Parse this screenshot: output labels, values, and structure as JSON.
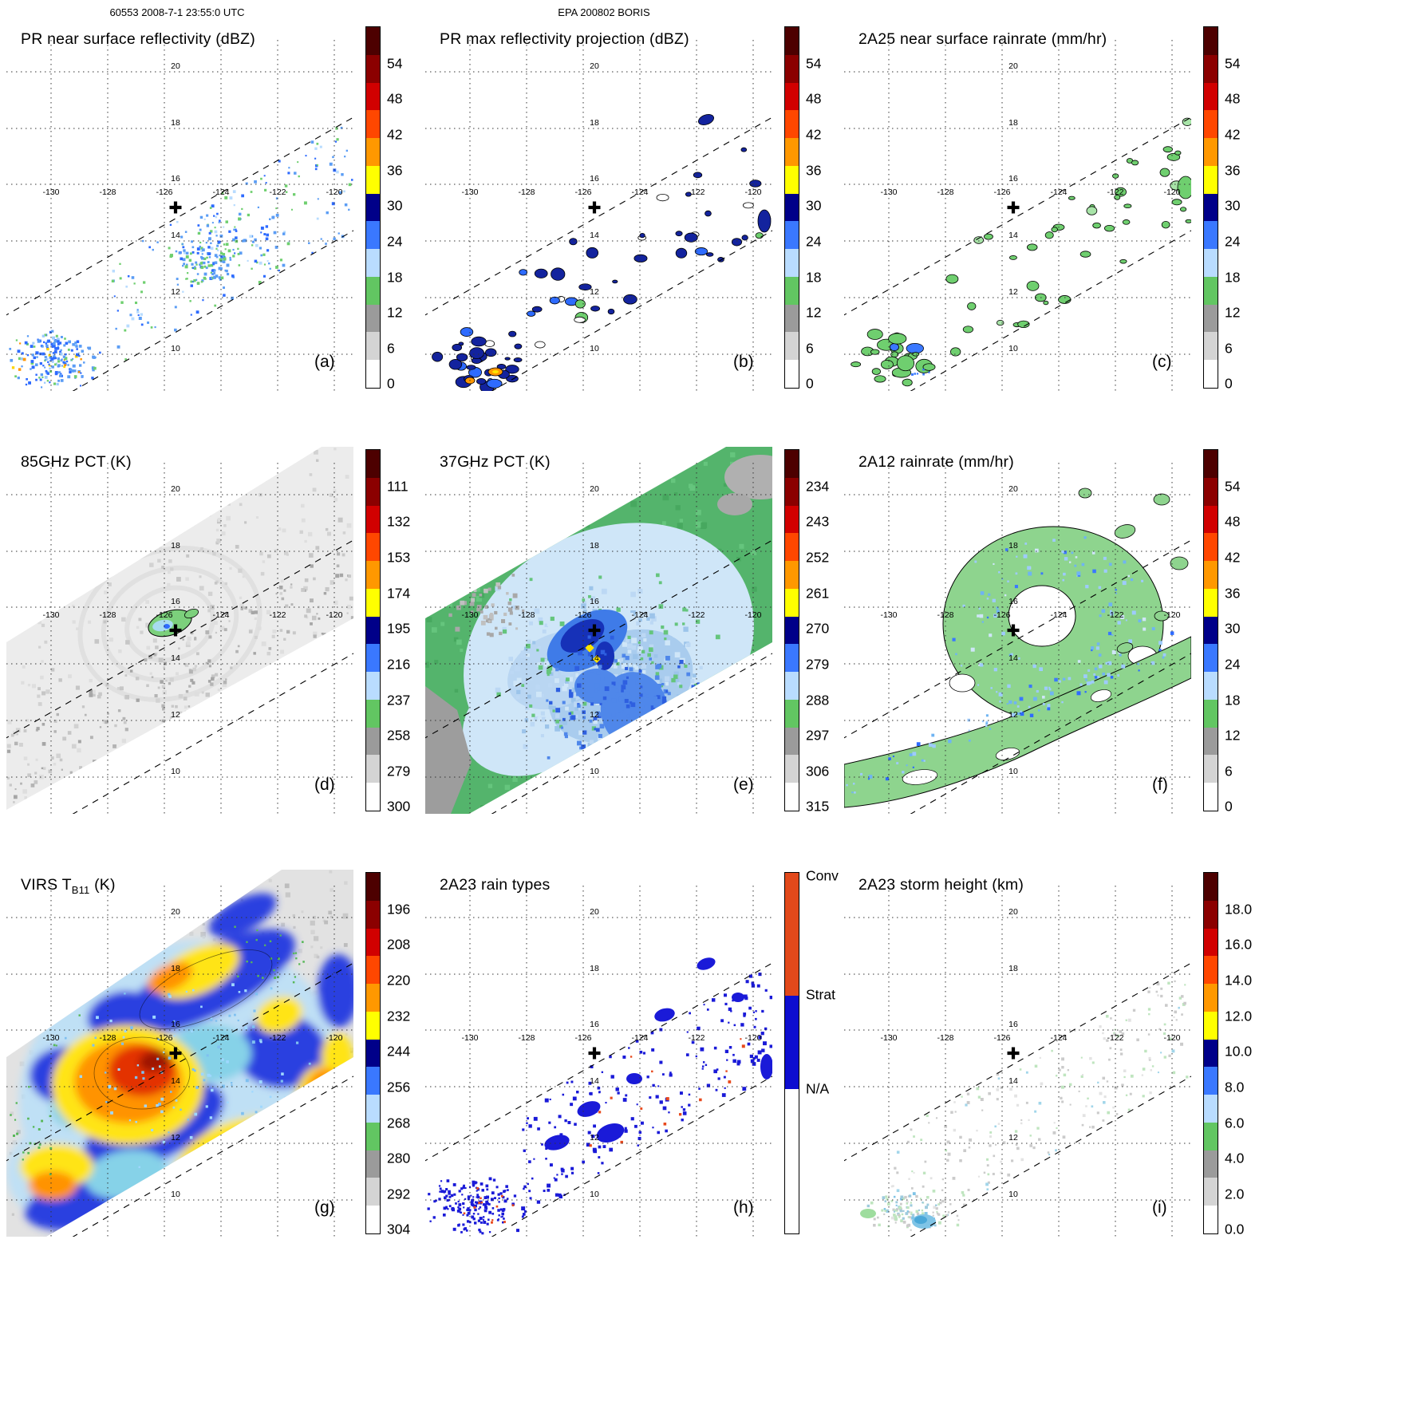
{
  "header": {
    "left": "60553 2008-7-1 23:55:0 UTC",
    "center": "EPA 200802 BORIS"
  },
  "axes": {
    "lon_labels": [
      "-130",
      "-128",
      "-126",
      "-124",
      "-122",
      "-120"
    ],
    "lat_labels": [
      "20",
      "18",
      "16",
      "14",
      "12",
      "10"
    ]
  },
  "marker": {
    "lon": -125.7,
    "lat": 15.4
  },
  "colorbar_colors": [
    "#4d0000",
    "#8b0000",
    "#d10000",
    "#ff4700",
    "#ff9800",
    "#ffff00",
    "#000089",
    "#3a78ff",
    "#b9dcff",
    "#62c662",
    "#9b9b9b",
    "#d4d4d4",
    "#ffffff"
  ],
  "raintype": {
    "segments": [
      {
        "label": "Conv",
        "color": "#e2491b",
        "frac": 0.34
      },
      {
        "label": "Strat",
        "color": "#0d0dd0",
        "frac": 0.26
      },
      {
        "label": "N/A",
        "color": "#ffffff",
        "frac": 0.4
      }
    ]
  },
  "panels": [
    {
      "key": "a",
      "letter": "(a)",
      "title": "PR near surface reflectivity (dBZ)",
      "cb": "scale",
      "cb_labels": [
        "54",
        "48",
        "42",
        "36",
        "30",
        "24",
        "18",
        "12",
        "6",
        "0"
      ]
    },
    {
      "key": "b",
      "letter": "(b)",
      "title": "PR max reflectivity projection (dBZ)",
      "cb": "scale",
      "cb_labels": [
        "54",
        "48",
        "42",
        "36",
        "30",
        "24",
        "18",
        "12",
        "6",
        "0"
      ]
    },
    {
      "key": "c",
      "letter": "(c)",
      "title": "2A25 near surface rainrate (mm/hr)",
      "cb": "scale",
      "cb_labels": [
        "54",
        "48",
        "42",
        "36",
        "30",
        "24",
        "18",
        "12",
        "6",
        "0"
      ]
    },
    {
      "key": "d",
      "letter": "(d)",
      "title": "85GHz PCT (K)",
      "cb": "scale",
      "cb_labels": [
        "111",
        "132",
        "153",
        "174",
        "195",
        "216",
        "237",
        "258",
        "279",
        "300"
      ]
    },
    {
      "key": "e",
      "letter": "(e)",
      "title": "37GHz PCT (K)",
      "cb": "scale",
      "cb_labels": [
        "234",
        "243",
        "252",
        "261",
        "270",
        "279",
        "288",
        "297",
        "306",
        "315"
      ]
    },
    {
      "key": "f",
      "letter": "(f)",
      "title": "2A12 rainrate (mm/hr)",
      "cb": "scale",
      "cb_labels": [
        "54",
        "48",
        "42",
        "36",
        "30",
        "24",
        "18",
        "12",
        "6",
        "0"
      ]
    },
    {
      "key": "g",
      "letter": "(g)",
      "title_pre": "VIRS T",
      "title_sub": "B11",
      "title_post": " (K)",
      "cb": "scale",
      "cb_labels": [
        "196",
        "208",
        "220",
        "232",
        "244",
        "256",
        "268",
        "280",
        "292",
        "304"
      ]
    },
    {
      "key": "h",
      "letter": "(h)",
      "title": "2A23 rain types",
      "cb": "raintype",
      "cb_labels": [
        "Conv",
        "Strat",
        "N/A"
      ]
    },
    {
      "key": "i",
      "letter": "(i)",
      "title": "2A23 storm height (km)",
      "cb": "scale",
      "cb_labels": [
        "18.0",
        "16.0",
        "14.0",
        "12.0",
        "10.0",
        "8.0",
        "6.0",
        "4.0",
        "2.0",
        "0.0"
      ]
    }
  ],
  "chart_data": [
    {
      "panel": "(a)",
      "type": "heatmap",
      "title": "PR near surface reflectivity (dBZ)",
      "units": "dBZ",
      "colorbar_ticks": [
        54,
        48,
        42,
        36,
        30,
        24,
        18,
        12,
        6,
        0
      ],
      "lon_ticks": [
        -130,
        -128,
        -126,
        -124,
        -122,
        -120
      ],
      "lat_ticks": [
        20,
        18,
        16,
        14,
        12,
        10
      ],
      "storm_center": {
        "lon": -125.7,
        "lat": 15.4
      },
      "notes": "scattered 18-30 dBZ echoes along narrow PR swath; denser cluster near 10N 129-131W"
    },
    {
      "panel": "(b)",
      "type": "heatmap",
      "title": "PR max reflectivity projection (dBZ)",
      "units": "dBZ",
      "colorbar_ticks": [
        54,
        48,
        42,
        36,
        30,
        24,
        18,
        12,
        6,
        0
      ],
      "lon_ticks": [
        -130,
        -128,
        -126,
        -124,
        -122,
        -120
      ],
      "lat_ticks": [
        20,
        18,
        16,
        14,
        12,
        10
      ],
      "storm_center": {
        "lon": -125.7,
        "lat": 15.4
      },
      "notes": "outlined 30-36 dBZ cells along swath; 42-48 dBZ cores near 10N 130W"
    },
    {
      "panel": "(c)",
      "type": "heatmap",
      "title": "2A25 near surface rainrate (mm/hr)",
      "units": "mm/hr",
      "colorbar_ticks": [
        54,
        48,
        42,
        36,
        30,
        24,
        18,
        12,
        6,
        0
      ],
      "lon_ticks": [
        -130,
        -128,
        -126,
        -124,
        -122,
        -120
      ],
      "lat_ticks": [
        20,
        18,
        16,
        14,
        12,
        10
      ],
      "storm_center": {
        "lon": -125.7,
        "lat": 15.4
      },
      "notes": "light rain (0-12 mm/hr, green) patches along the PR swath"
    },
    {
      "panel": "(d)",
      "type": "heatmap",
      "title": "85GHz PCT (K)",
      "units": "K",
      "colorbar_ticks": [
        111,
        132,
        153,
        174,
        195,
        216,
        237,
        258,
        279,
        300
      ],
      "lon_ticks": [
        -130,
        -128,
        -126,
        -124,
        -122,
        -120
      ],
      "lat_ticks": [
        20,
        18,
        16,
        14,
        12,
        10
      ],
      "storm_center": {
        "lon": -125.7,
        "lat": 15.4
      },
      "notes": "warm PCT field (~280-300 K) with 216-237 K depression ring near storm center"
    },
    {
      "panel": "(e)",
      "type": "heatmap",
      "title": "37GHz PCT (K)",
      "units": "K",
      "colorbar_ticks": [
        234,
        243,
        252,
        261,
        270,
        279,
        288,
        297,
        306,
        315
      ],
      "lon_ticks": [
        -130,
        -128,
        -126,
        -124,
        -122,
        -120
      ],
      "lat_ticks": [
        20,
        18,
        16,
        14,
        12,
        10
      ],
      "storm_center": {
        "lon": -125.7,
        "lat": 15.4
      },
      "notes": "green ~288 K background, 270-279 K pale-blue shield, 261-270 K spiral with ~252 K spots near center"
    },
    {
      "panel": "(f)",
      "type": "heatmap",
      "title": "2A12 rainrate (mm/hr)",
      "units": "mm/hr",
      "colorbar_ticks": [
        54,
        48,
        42,
        36,
        30,
        24,
        18,
        12,
        6,
        0
      ],
      "lon_ticks": [
        -130,
        -128,
        -126,
        -124,
        -122,
        -120
      ],
      "lat_ticks": [
        20,
        18,
        16,
        14,
        12,
        10
      ],
      "storm_center": {
        "lon": -125.7,
        "lat": 15.4
      },
      "notes": "0-6 mm/hr annulus around center and outer rainband toward southwest"
    },
    {
      "panel": "(g)",
      "type": "heatmap",
      "title": "VIRS TB11 (K)",
      "units": "K",
      "colorbar_ticks": [
        196,
        208,
        220,
        232,
        244,
        256,
        268,
        280,
        292,
        304
      ],
      "lon_ticks": [
        -130,
        -128,
        -126,
        -124,
        -122,
        -120
      ],
      "lat_ticks": [
        20,
        18,
        16,
        14,
        12,
        10
      ],
      "storm_center": {
        "lon": -125.7,
        "lat": 15.4
      },
      "notes": "cold cloud tops 196-220 K (red/orange) in CDO and rainbands over 244-268 K shield"
    },
    {
      "panel": "(h)",
      "type": "heatmap",
      "title": "2A23 rain types",
      "categories": [
        "Conv",
        "Strat",
        "N/A"
      ],
      "category_colors": [
        "#e2491b",
        "#0d0dd0",
        "#ffffff"
      ],
      "lon_ticks": [
        -130,
        -128,
        -126,
        -124,
        -122,
        -120
      ],
      "lat_ticks": [
        20,
        18,
        16,
        14,
        12,
        10
      ],
      "storm_center": {
        "lon": -125.7,
        "lat": 15.4
      },
      "notes": "mostly stratiform (blue) pixels with sparse convective (red) pixels"
    },
    {
      "panel": "(i)",
      "type": "heatmap",
      "title": "2A23 storm height (km)",
      "units": "km",
      "colorbar_ticks": [
        18.0,
        16.0,
        14.0,
        12.0,
        10.0,
        8.0,
        6.0,
        4.0,
        2.0,
        0.0
      ],
      "lon_ticks": [
        -130,
        -128,
        -126,
        -124,
        -122,
        -120
      ],
      "lat_ticks": [
        20,
        18,
        16,
        14,
        12,
        10
      ],
      "storm_center": {
        "lon": -125.7,
        "lat": 15.4
      },
      "notes": "storm heights mostly 2-6 km (gray/green) with isolated 8-10 km cells southwest"
    }
  ]
}
